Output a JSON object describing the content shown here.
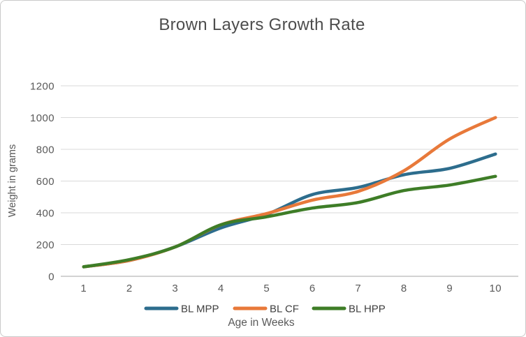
{
  "chart": {
    "title": "Brown Layers Growth Rate",
    "x_axis_title": "Age in Weeks",
    "y_axis_title": "Weight in grams"
  },
  "chart_data": {
    "type": "line",
    "title": "Brown Layers Growth Rate",
    "xlabel": "Age in Weeks",
    "ylabel": "Weight in grams",
    "categories": [
      1,
      2,
      3,
      4,
      5,
      6,
      7,
      8,
      9,
      10
    ],
    "series": [
      {
        "name": "BL MPP",
        "color": "#2d6d8d",
        "values": [
          60,
          100,
          185,
          305,
          390,
          515,
          560,
          640,
          680,
          770
        ]
      },
      {
        "name": "BL CF",
        "color": "#e8793a",
        "values": [
          60,
          100,
          185,
          325,
          395,
          480,
          535,
          665,
          865,
          1000
        ]
      },
      {
        "name": "BL HPP",
        "color": "#3e7d27",
        "values": [
          60,
          105,
          185,
          325,
          375,
          430,
          465,
          540,
          575,
          630
        ]
      }
    ],
    "ylim": [
      0,
      1200
    ],
    "ytick_step": 200,
    "yticks": [
      "0",
      "200",
      "400",
      "600",
      "800",
      "1000",
      "1200"
    ],
    "grid": "horizontal",
    "legend_position": "bottom",
    "smoothed_lines": true
  },
  "colors": {
    "title_text": "#4d4d4d",
    "axis_text": "#595959",
    "gridline": "#d9d9d9",
    "frame_border": "#c9c9c9",
    "background": "#ffffff"
  }
}
